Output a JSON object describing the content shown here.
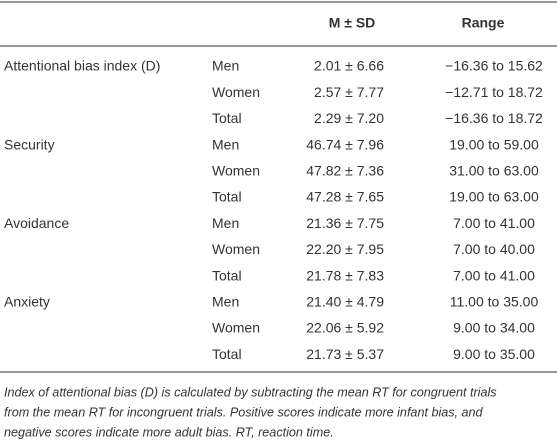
{
  "table": {
    "header": [
      "M ± SD",
      "Range"
    ],
    "groups": [
      {
        "label": "Attentional bias index (D)",
        "rows": [
          [
            "Men",
            "2.01 ± 6.66",
            "−16.36 to 15.62"
          ],
          [
            "Women",
            "2.57 ± 7.77",
            "−12.71 to 18.72"
          ],
          [
            "Total",
            "2.29 ± 7.20",
            "−16.36 to 18.72"
          ]
        ]
      },
      {
        "label": "Security",
        "rows": [
          [
            "Men",
            "46.74 ± 7.96",
            "19.00 to 59.00"
          ],
          [
            "Women",
            "47.82 ± 7.36",
            "31.00 to 63.00"
          ],
          [
            "Total",
            "47.28 ± 7.65",
            "19.00 to 63.00"
          ]
        ]
      },
      {
        "label": "Avoidance",
        "rows": [
          [
            "Men",
            "21.36 ± 7.75",
            "7.00 to 41.00"
          ],
          [
            "Women",
            "22.20 ± 7.95",
            "7.00 to 40.00"
          ],
          [
            "Total",
            "21.78 ± 7.83",
            "7.00 to 41.00"
          ]
        ]
      },
      {
        "label": "Anxiety",
        "rows": [
          [
            "Men",
            "21.40 ± 4.79",
            "11.00 to 35.00"
          ],
          [
            "Women",
            "22.06 ± 5.92",
            "9.00 to 34.00"
          ],
          [
            "Total",
            "21.73 ± 5.37",
            "9.00 to 35.00"
          ]
        ]
      }
    ],
    "footnote": [
      "Index of attentional bias (D) is calculated by subtracting the mean RT for congruent trials",
      "from the mean RT for incongruent trials. Positive scores indicate more infant bias, and",
      "negative scores indicate more adult bias. RT, reaction time."
    ]
  }
}
